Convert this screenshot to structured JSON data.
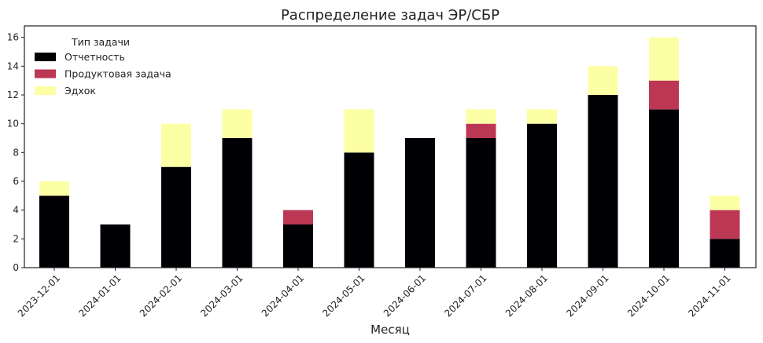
{
  "chart_data": {
    "type": "bar",
    "stacked": true,
    "title": "Распределение задач ЭР/СБР",
    "xlabel": "Месяц",
    "ylabel": "",
    "ylim": [
      0,
      16.8
    ],
    "yticks": [
      0,
      2,
      4,
      6,
      8,
      10,
      12,
      14,
      16
    ],
    "grid": false,
    "legend": {
      "title": "Тип задачи",
      "placement": "top-left"
    },
    "categories": [
      "2023-12-01",
      "2024-01-01",
      "2024-02-01",
      "2024-03-01",
      "2024-04-01",
      "2024-05-01",
      "2024-06-01",
      "2024-07-01",
      "2024-08-01",
      "2024-09-01",
      "2024-10-01",
      "2024-11-01"
    ],
    "series": [
      {
        "name": "Отчетность",
        "color": "#000004",
        "values": [
          5,
          3,
          7,
          9,
          3,
          8,
          9,
          9,
          10,
          12,
          11,
          2
        ]
      },
      {
        "name": "Продуктовая задача",
        "color": "#bc3754",
        "values": [
          0,
          0,
          0,
          0,
          1,
          0,
          0,
          1,
          0,
          0,
          2,
          2
        ]
      },
      {
        "name": "Эдхок",
        "color": "#fcffa4",
        "values": [
          1,
          0,
          3,
          2,
          0,
          3,
          0,
          1,
          1,
          2,
          3,
          1
        ]
      }
    ]
  }
}
